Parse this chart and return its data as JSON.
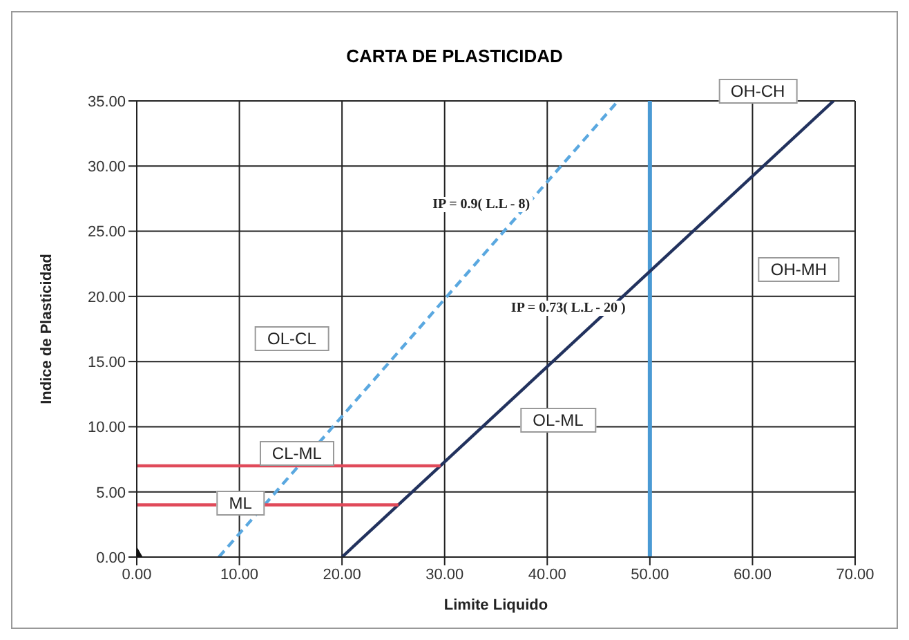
{
  "chart_data": {
    "type": "line",
    "title": "CARTA DE PLASTICIDAD",
    "xlabel": "Limite Liquido",
    "ylabel": "Indice de Plasticidad",
    "xlim": [
      0,
      70
    ],
    "ylim": [
      0,
      35
    ],
    "xticks": [
      {
        "value": 0,
        "label": "0.00"
      },
      {
        "value": 10,
        "label": "10.00"
      },
      {
        "value": 20,
        "label": "20.00"
      },
      {
        "value": 30,
        "label": "30.00"
      },
      {
        "value": 40,
        "label": "40.00"
      },
      {
        "value": 50,
        "label": "50.00"
      },
      {
        "value": 60,
        "label": "60.00"
      },
      {
        "value": 70,
        "label": "70.00"
      }
    ],
    "yticks": [
      {
        "value": 0,
        "label": "0.00"
      },
      {
        "value": 5,
        "label": "5.00"
      },
      {
        "value": 10,
        "label": "10.00"
      },
      {
        "value": 15,
        "label": "15.00"
      },
      {
        "value": 20,
        "label": "20.00"
      },
      {
        "value": 25,
        "label": "25.00"
      },
      {
        "value": 30,
        "label": "30.00"
      },
      {
        "value": 35,
        "label": "35.00"
      }
    ],
    "grid": true,
    "series": [
      {
        "color": "#22325e",
        "x": [
          20,
          67.9
        ],
        "values": [
          0,
          35
        ],
        "line_style": "solid"
      },
      {
        "color": "#5aa8e0",
        "x": [
          8,
          46.9
        ],
        "values": [
          0,
          35
        ],
        "line_style": "dashed"
      },
      {
        "color": "#e04a5a",
        "x": [
          0,
          29.6
        ],
        "values": [
          7,
          7
        ],
        "line_style": "solid"
      },
      {
        "color": "#e04a5a",
        "x": [
          0,
          25.5
        ],
        "values": [
          4,
          4
        ],
        "line_style": "solid"
      },
      {
        "type": "scatter",
        "color": "#111111",
        "x": [
          0
        ],
        "values": [
          0
        ],
        "marker": "diamond"
      }
    ],
    "ref_lines": [
      {
        "axis": "x",
        "value": 50,
        "color": "#4a9ad4",
        "line_style": "solid"
      }
    ],
    "annotations": [
      "IP = 0.9( L.L - 8)",
      "IP = 0.73( L.L - 20 )",
      "OH-CH",
      "OH-MH",
      "OL-CL",
      "OL-ML",
      "CL-ML",
      "ML"
    ]
  }
}
